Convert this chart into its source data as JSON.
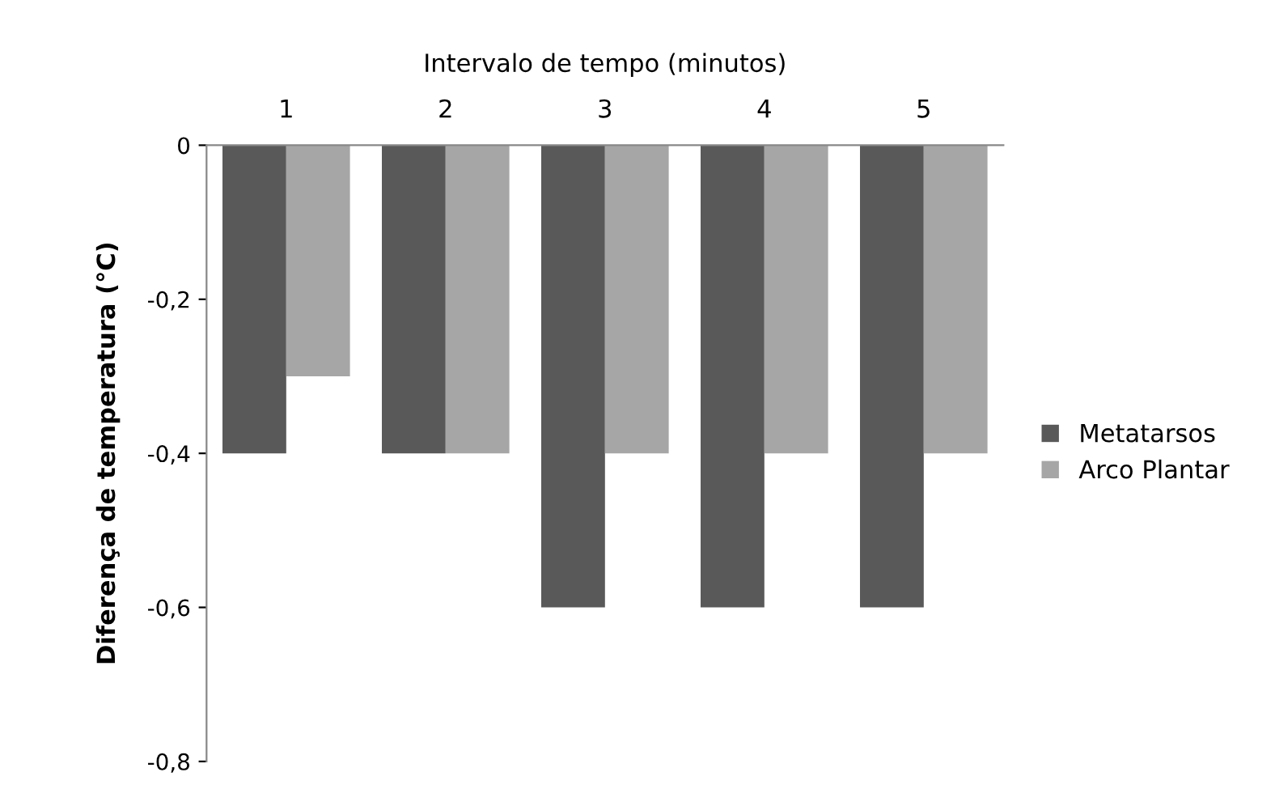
{
  "chart_data": {
    "type": "bar",
    "xlabel": "Intervalo de tempo (minutos)",
    "ylabel": "Diferença de temperatura (°C)",
    "categories": [
      "1",
      "2",
      "3",
      "4",
      "5"
    ],
    "series": [
      {
        "name": "Metatarsos",
        "color": "#595959",
        "values": [
          -0.4,
          -0.4,
          -0.6,
          -0.6,
          -0.6
        ]
      },
      {
        "name": "Arco Plantar",
        "color": "#a6a6a6",
        "values": [
          -0.3,
          -0.4,
          -0.4,
          -0.4,
          -0.4
        ]
      }
    ],
    "ylim": [
      -0.8,
      0
    ],
    "yticks": [
      {
        "value": 0,
        "label": "0"
      },
      {
        "value": -0.2,
        "label": "-0,2"
      },
      {
        "value": -0.4,
        "label": "-0,4"
      },
      {
        "value": -0.6,
        "label": "-0,6"
      },
      {
        "value": -0.8,
        "label": "-0,8"
      }
    ],
    "legend": "right",
    "grid": false
  }
}
